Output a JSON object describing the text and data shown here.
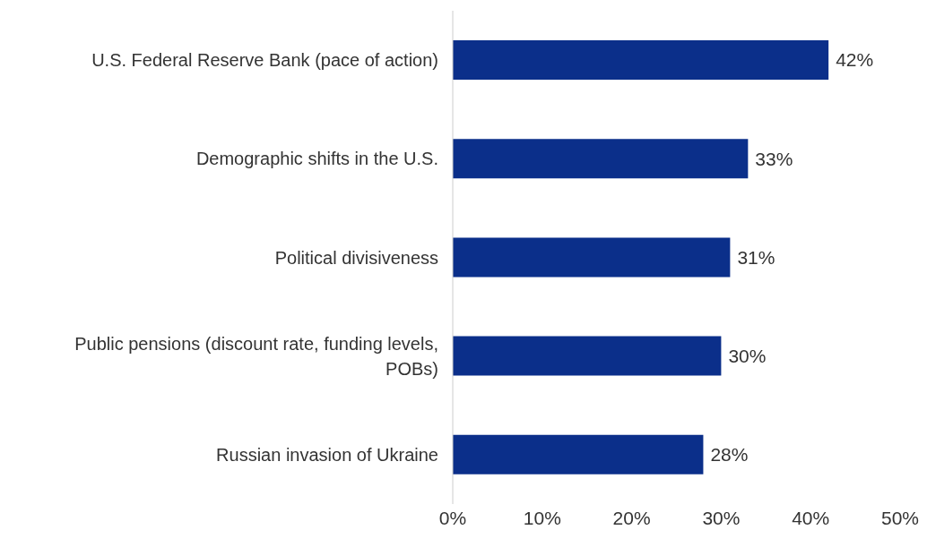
{
  "chart_data": {
    "type": "bar",
    "orientation": "horizontal",
    "categories": [
      "U.S. Federal Reserve Bank (pace of action)",
      "Demographic shifts in the U.S.",
      "Political divisiveness",
      "Public pensions (discount rate, funding levels, POBs)",
      "Russian invasion of Ukraine"
    ],
    "values": [
      42,
      33,
      31,
      30,
      28
    ],
    "value_labels": [
      "42%",
      "33%",
      "31%",
      "30%",
      "28%"
    ],
    "color": "#0b2f8a",
    "xlim": [
      0,
      50
    ],
    "xticks": [
      {
        "value": 0,
        "label": "0%"
      },
      {
        "value": 10,
        "label": "10%"
      },
      {
        "value": 20,
        "label": "20%"
      },
      {
        "value": 30,
        "label": "30%"
      },
      {
        "value": 40,
        "label": "40%"
      },
      {
        "value": 50,
        "label": "50%"
      }
    ],
    "grid": false,
    "legend": false
  }
}
